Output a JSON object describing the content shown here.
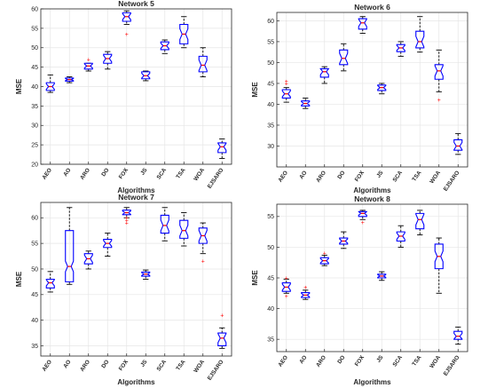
{
  "chart_data": [
    {
      "type": "boxplot",
      "title": "Network 5",
      "xlabel": "Algorithms",
      "ylabel": "MSE",
      "ylim": [
        20,
        60
      ],
      "yticks": [
        20,
        25,
        30,
        35,
        40,
        45,
        50,
        55,
        60
      ],
      "grid": true,
      "categories": [
        "AEO",
        "AO",
        "ARO",
        "DO",
        "FOX",
        "JS",
        "SCA",
        "TSA",
        "WOA",
        "EJSARO"
      ],
      "boxes": [
        {
          "min": 38.5,
          "q1": 39.0,
          "median": 40.0,
          "q3": 41.0,
          "max": 43.0,
          "outliers": []
        },
        {
          "min": 41.0,
          "q1": 41.4,
          "median": 41.8,
          "q3": 42.2,
          "max": 42.5,
          "outliers": []
        },
        {
          "min": 44.0,
          "q1": 44.5,
          "median": 45.3,
          "q3": 46.0,
          "max": 46.0,
          "outliers": [
            47.0
          ]
        },
        {
          "min": 44.5,
          "q1": 46.0,
          "median": 47.2,
          "q3": 48.3,
          "max": 49.0,
          "outliers": []
        },
        {
          "min": 56.0,
          "q1": 56.8,
          "median": 58.0,
          "q3": 59.0,
          "max": 59.5,
          "outliers": [
            53.5
          ]
        },
        {
          "min": 41.5,
          "q1": 42.0,
          "median": 42.8,
          "q3": 43.8,
          "max": 44.0,
          "outliers": []
        },
        {
          "min": 48.5,
          "q1": 49.5,
          "median": 50.5,
          "q3": 51.5,
          "max": 52.0,
          "outliers": []
        },
        {
          "min": 50.0,
          "q1": 51.0,
          "median": 53.5,
          "q3": 56.0,
          "max": 58.0,
          "outliers": []
        },
        {
          "min": 42.5,
          "q1": 43.8,
          "median": 45.5,
          "q3": 47.8,
          "max": 50.0,
          "outliers": []
        },
        {
          "min": 21.5,
          "q1": 23.0,
          "median": 24.5,
          "q3": 25.5,
          "max": 26.5,
          "outliers": []
        }
      ]
    },
    {
      "type": "boxplot",
      "title": "Network 6",
      "xlabel": "Algorithms",
      "ylabel": "MSE",
      "ylim": [
        25,
        62
      ],
      "yticks": [
        30,
        35,
        40,
        45,
        50,
        55,
        60
      ],
      "grid": true,
      "categories": [
        "AEO",
        "AO",
        "ARO",
        "DO",
        "FOX",
        "JS",
        "SCA",
        "TSA",
        "WOA",
        "EJSARO"
      ],
      "boxes": [
        {
          "min": 40.5,
          "q1": 41.5,
          "median": 42.5,
          "q3": 43.5,
          "max": 44.0,
          "outliers": [
            45.0,
            45.5
          ]
        },
        {
          "min": 39.0,
          "q1": 39.6,
          "median": 40.2,
          "q3": 40.8,
          "max": 41.5,
          "outliers": []
        },
        {
          "min": 45.0,
          "q1": 46.5,
          "median": 47.8,
          "q3": 48.5,
          "max": 49.0,
          "outliers": []
        },
        {
          "min": 48.0,
          "q1": 49.5,
          "median": 51.0,
          "q3": 53.0,
          "max": 54.5,
          "outliers": []
        },
        {
          "min": 57.0,
          "q1": 58.0,
          "median": 59.5,
          "q3": 60.5,
          "max": 61.0,
          "outliers": []
        },
        {
          "min": 42.5,
          "q1": 43.3,
          "median": 44.0,
          "q3": 44.6,
          "max": 45.0,
          "outliers": []
        },
        {
          "min": 51.5,
          "q1": 52.6,
          "median": 53.5,
          "q3": 54.3,
          "max": 55.0,
          "outliers": []
        },
        {
          "min": 52.5,
          "q1": 53.5,
          "median": 55.0,
          "q3": 57.5,
          "max": 61.0,
          "outliers": []
        },
        {
          "min": 43.0,
          "q1": 46.0,
          "median": 48.0,
          "q3": 49.5,
          "max": 53.0,
          "outliers": [
            41.0
          ]
        },
        {
          "min": 28.0,
          "q1": 29.0,
          "median": 30.0,
          "q3": 31.5,
          "max": 33.0,
          "outliers": []
        }
      ]
    },
    {
      "type": "boxplot",
      "title": "Network 7",
      "xlabel": "Algorithms",
      "ylabel": "MSE",
      "ylim": [
        33,
        63
      ],
      "yticks": [
        35,
        40,
        45,
        50,
        55,
        60
      ],
      "grid": true,
      "categories": [
        "AEO",
        "AO",
        "ARO",
        "DO",
        "FOX",
        "JS",
        "SCA",
        "TSA",
        "WOA",
        "EJSARO"
      ],
      "boxes": [
        {
          "min": 45.5,
          "q1": 46.3,
          "median": 47.3,
          "q3": 48.0,
          "max": 49.5,
          "outliers": []
        },
        {
          "min": 47.0,
          "q1": 47.5,
          "median": 50.5,
          "q3": 57.5,
          "max": 62.0,
          "outliers": []
        },
        {
          "min": 50.0,
          "q1": 51.0,
          "median": 52.0,
          "q3": 53.0,
          "max": 53.5,
          "outliers": []
        },
        {
          "min": 52.5,
          "q1": 54.2,
          "median": 55.0,
          "q3": 55.8,
          "max": 57.0,
          "outliers": []
        },
        {
          "min": 60.0,
          "q1": 60.6,
          "median": 61.0,
          "q3": 61.5,
          "max": 62.0,
          "outliers": [
            59.0,
            59.5,
            60.0
          ]
        },
        {
          "min": 48.0,
          "q1": 48.6,
          "median": 49.0,
          "q3": 49.4,
          "max": 49.8,
          "outliers": []
        },
        {
          "min": 55.5,
          "q1": 57.0,
          "median": 58.5,
          "q3": 60.5,
          "max": 62.0,
          "outliers": []
        },
        {
          "min": 54.5,
          "q1": 56.0,
          "median": 57.5,
          "q3": 59.5,
          "max": 61.0,
          "outliers": []
        },
        {
          "min": 53.0,
          "q1": 55.0,
          "median": 56.5,
          "q3": 58.0,
          "max": 59.0,
          "outliers": [
            51.5
          ]
        },
        {
          "min": 34.5,
          "q1": 35.0,
          "median": 36.5,
          "q3": 37.5,
          "max": 38.5,
          "outliers": [
            41.0
          ]
        }
      ]
    },
    {
      "type": "boxplot",
      "title": "Network 8",
      "xlabel": "Algorithms",
      "ylabel": "MSE",
      "ylim": [
        33,
        57
      ],
      "yticks": [
        35,
        40,
        45,
        50,
        55
      ],
      "grid": true,
      "categories": [
        "AEO",
        "AO",
        "ARO",
        "DO",
        "FOX",
        "JS",
        "SCA",
        "TSA",
        "WOA",
        "EJSARO"
      ],
      "boxes": [
        {
          "min": 42.5,
          "q1": 42.8,
          "median": 43.5,
          "q3": 44.2,
          "max": 44.8,
          "outliers": [
            42.0,
            45.0
          ]
        },
        {
          "min": 41.5,
          "q1": 41.8,
          "median": 42.2,
          "q3": 42.6,
          "max": 43.0,
          "outliers": [
            43.5
          ]
        },
        {
          "min": 47.0,
          "q1": 47.3,
          "median": 47.8,
          "q3": 48.3,
          "max": 48.7,
          "outliers": [
            49.0
          ]
        },
        {
          "min": 49.8,
          "q1": 50.5,
          "median": 51.0,
          "q3": 51.5,
          "max": 52.5,
          "outliers": []
        },
        {
          "min": 54.5,
          "q1": 55.0,
          "median": 55.5,
          "q3": 55.8,
          "max": 56.0,
          "outliers": [
            54.0
          ]
        },
        {
          "min": 44.6,
          "q1": 45.0,
          "median": 45.3,
          "q3": 45.6,
          "max": 46.0,
          "outliers": []
        },
        {
          "min": 50.0,
          "q1": 51.0,
          "median": 51.8,
          "q3": 52.5,
          "max": 53.5,
          "outliers": []
        },
        {
          "min": 52.0,
          "q1": 53.0,
          "median": 54.5,
          "q3": 55.5,
          "max": 56.0,
          "outliers": []
        },
        {
          "min": 42.5,
          "q1": 46.5,
          "median": 48.5,
          "q3": 50.5,
          "max": 51.5,
          "outliers": []
        },
        {
          "min": 34.2,
          "q1": 35.0,
          "median": 35.5,
          "q3": 36.3,
          "max": 37.0,
          "outliers": []
        }
      ]
    }
  ],
  "colors": {
    "box": "#0000ff",
    "median": "#ff0000",
    "outlier": "#ff0000",
    "whisker": "#000000",
    "grid": "#e6e6e6",
    "axis": "#262626"
  }
}
